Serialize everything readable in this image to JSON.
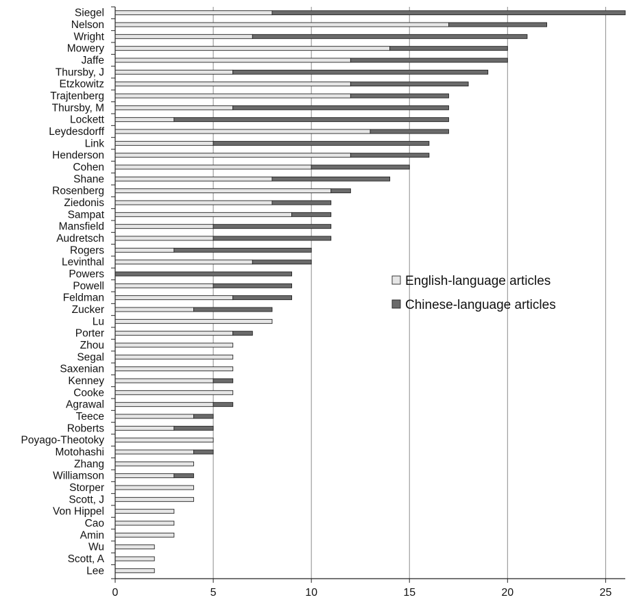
{
  "chart_data": {
    "type": "bar",
    "orientation": "horizontal",
    "stacked": true,
    "title": "",
    "xlabel": "",
    "ylabel": "",
    "xlim": [
      0,
      26
    ],
    "xticks": [
      0,
      5,
      10,
      15,
      20,
      25
    ],
    "grid": "vertical",
    "legend_position": "right-middle",
    "categories": [
      "Siegel",
      "Nelson",
      "Wright",
      "Mowery",
      "Jaffe",
      "Thursby, J",
      "Etzkowitz",
      "Trajtenberg",
      "Thursby, M",
      "Lockett",
      "Leydesdorff",
      "Link",
      "Henderson",
      "Cohen",
      "Shane",
      "Rosenberg",
      "Ziedonis",
      "Sampat",
      "Mansfield",
      "Audretsch",
      "Rogers",
      "Levinthal",
      "Powers",
      "Powell",
      "Feldman",
      "Zucker",
      "Lu",
      "Porter",
      "Zhou",
      "Segal",
      "Saxenian",
      "Kenney",
      "Cooke",
      "Agrawal",
      "Teece",
      "Roberts",
      "Poyago-Theotoky",
      "Motohashi",
      "Zhang",
      "Williamson",
      "Storper",
      "Scott, J",
      "Von Hippel",
      "Cao",
      "Amin",
      "Wu",
      "Scott, A",
      "Lee"
    ],
    "series": [
      {
        "name": "English-language articles",
        "color": "#e6e6e6",
        "values": [
          8,
          17,
          7,
          14,
          12,
          6,
          12,
          12,
          6,
          3,
          13,
          5,
          12,
          10,
          8,
          11,
          8,
          9,
          5,
          5,
          3,
          7,
          0,
          5,
          6,
          4,
          8,
          6,
          6,
          6,
          6,
          5,
          6,
          5,
          4,
          3,
          5,
          4,
          4,
          3,
          4,
          4,
          3,
          3,
          3,
          2,
          2,
          2
        ]
      },
      {
        "name": "Chinese-language articles",
        "color": "#6b6b6b",
        "values": [
          18,
          5,
          14,
          6,
          8,
          13,
          6,
          5,
          11,
          14,
          4,
          11,
          4,
          5,
          6,
          1,
          3,
          2,
          6,
          6,
          7,
          3,
          9,
          4,
          3,
          4,
          0,
          1,
          0,
          0,
          0,
          1,
          0,
          1,
          1,
          2,
          0,
          1,
          0,
          1,
          0,
          0,
          0,
          0,
          0,
          0,
          0,
          0
        ]
      }
    ]
  }
}
